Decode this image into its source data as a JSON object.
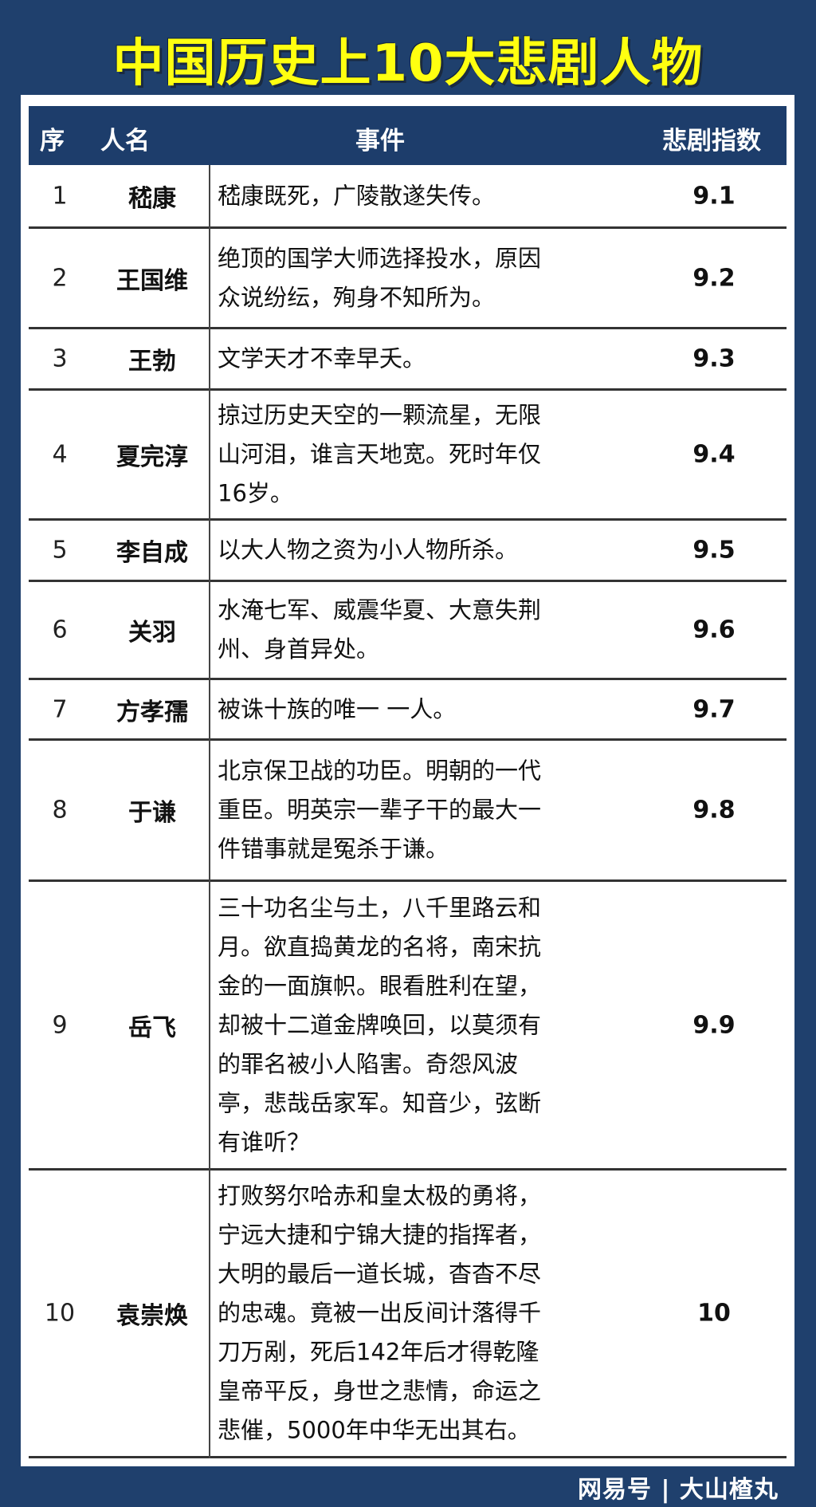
{
  "title": "中国历史上10大悲剧人物",
  "header": {
    "seq": "序",
    "name": "人名",
    "event": "事件",
    "score": "悲剧指数"
  },
  "rows": [
    {
      "seq": "1",
      "name": "嵇康",
      "event": "嵇康既死，广陵散遂失传。",
      "score": "9.1"
    },
    {
      "seq": "2",
      "name": "王国维",
      "event": "绝顶的国学大师选择投水，原因众说纷纭，殉身不知所为。",
      "score": "9.2"
    },
    {
      "seq": "3",
      "name": "王勃",
      "event": "文学天才不幸早夭。",
      "score": "9.3"
    },
    {
      "seq": "4",
      "name": "夏完淳",
      "event": "掠过历史天空的一颗流星，无限山河泪，谁言天地宽。死时年仅16岁。",
      "score": "9.4"
    },
    {
      "seq": "5",
      "name": "李自成",
      "event": "以大人物之资为小人物所杀。",
      "score": "9.5"
    },
    {
      "seq": "6",
      "name": "关羽",
      "event": "水淹七军、威震华夏、大意失荆州、身首异处。",
      "score": "9.6"
    },
    {
      "seq": "7",
      "name": "方孝孺",
      "event": "被诛十族的唯一 一人。",
      "score": "9.7"
    },
    {
      "seq": "8",
      "name": "于谦",
      "event": "北京保卫战的功臣。明朝的一代重臣。明英宗一辈子干的最大一件错事就是冤杀于谦。",
      "score": "9.8"
    },
    {
      "seq": "9",
      "name": "岳飞",
      "event": "三十功名尘与土，八千里路云和月。欲直捣黄龙的名将，南宋抗金的一面旗帜。眼看胜利在望，却被十二道金牌唤回，以莫须有的罪名被小人陷害。奇怨风波亭，悲哉岳家军。知音少，弦断有谁听？",
      "score": "9.9"
    },
    {
      "seq": "10",
      "name": "袁崇焕",
      "event": "打败努尔哈赤和皇太极的勇将，宁远大捷和宁锦大捷的指挥者，大明的最后一道长城，杳杳不尽的忠魂。竟被一出反间计落得千刀万剐，死后142年后才得乾隆皇帝平反，身世之悲情，命运之悲催，5000年中华无出其右。",
      "score": "10"
    }
  ],
  "watermark": "网易号 | 大山楂丸",
  "colors": {
    "background": "#1f406d",
    "header": "#1d3d6b",
    "title": "#ffff10"
  }
}
